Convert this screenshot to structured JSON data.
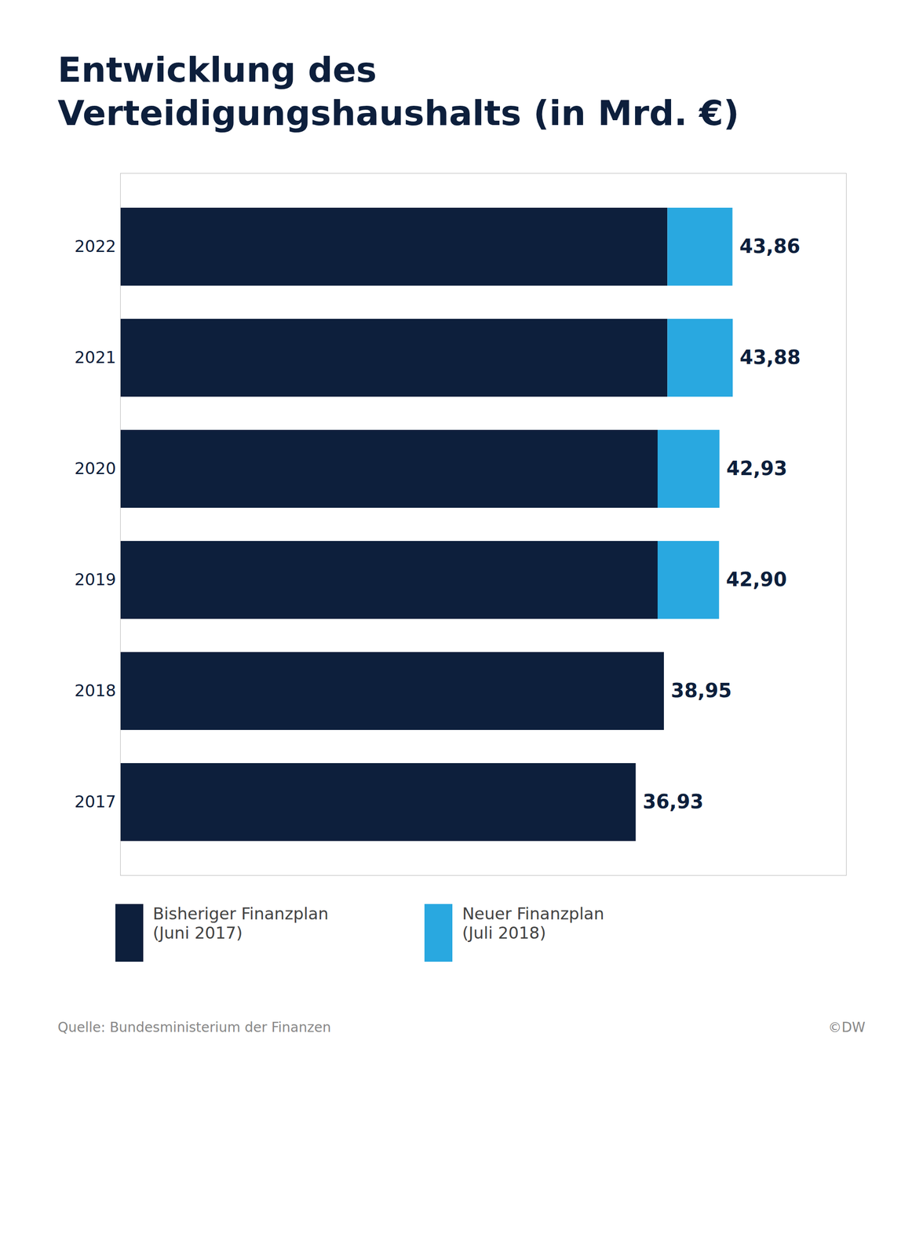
{
  "chart_data": {
    "type": "bar",
    "orientation": "horizontal",
    "stacked": true,
    "title": "Entwicklung des\nVerteidigungshaushalts (in Mrd. €)",
    "categories": [
      "2022",
      "2021",
      "2020",
      "2019",
      "2018",
      "2017"
    ],
    "series": [
      {
        "name": "Bisheriger Finanzplan\n(Juni 2017)",
        "color": "#0d1f3c",
        "values": [
          39.2,
          39.2,
          38.5,
          38.5,
          38.95,
          36.93
        ]
      },
      {
        "name": "Neuer Finanzplan\n(Juli 2018)",
        "color": "#29a8e0",
        "values": [
          4.66,
          4.68,
          4.43,
          4.4,
          0.0,
          0.0
        ]
      }
    ],
    "totals": [
      43.86,
      43.88,
      42.93,
      42.9,
      38.95,
      36.93
    ],
    "value_labels": [
      "43,86",
      "43,88",
      "42,93",
      "42,90",
      "38,95",
      "36,93"
    ],
    "data_labels": true,
    "xlim": [
      0,
      52
    ],
    "grid": false,
    "tick_labels": "y",
    "legend": "bottom",
    "annotations": [
      "Quelle: Bundesministerium der Finanzen",
      "©DW"
    ]
  }
}
